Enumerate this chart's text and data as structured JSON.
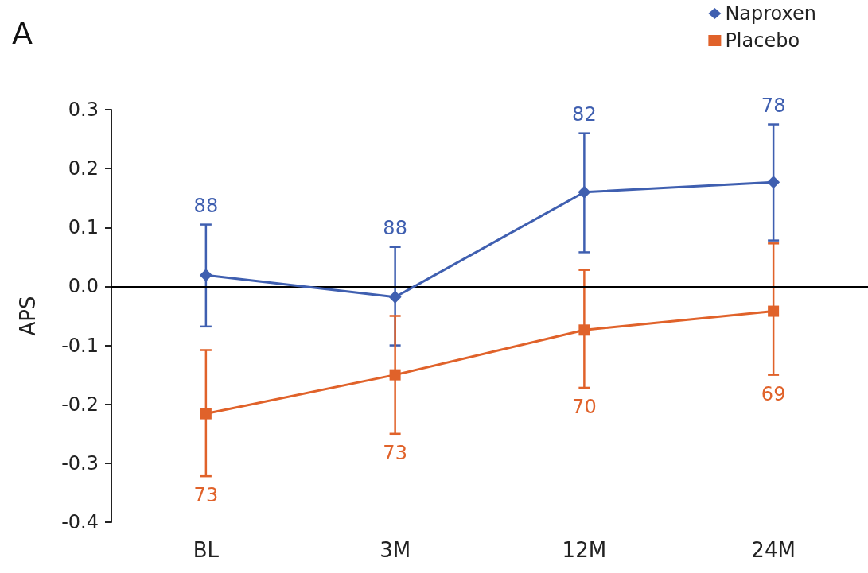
{
  "chart_data": {
    "type": "line",
    "title": "A",
    "ylabel": "APS",
    "categories": [
      "BL",
      "3M",
      "12M",
      "24M"
    ],
    "series": [
      {
        "name": "Naproxen",
        "color": "#3f5fb0",
        "marker": "diamond",
        "values": [
          0.019,
          -0.018,
          0.16,
          0.177
        ],
        "errors": [
          [
            -0.068,
            0.105
          ],
          [
            -0.1,
            0.067
          ],
          [
            0.058,
            0.26
          ],
          [
            0.078,
            0.275
          ]
        ]
      },
      {
        "name": "Placebo",
        "color": "#e0622a",
        "marker": "square",
        "values": [
          -0.216,
          -0.15,
          -0.074,
          -0.042
        ],
        "errors": [
          [
            -0.322,
            -0.108
          ],
          [
            -0.25,
            -0.05
          ],
          [
            -0.172,
            0.028
          ],
          [
            -0.15,
            0.073
          ]
        ]
      }
    ],
    "annotations": [
      {
        "text": "88",
        "x": "BL",
        "y": 0.105
      },
      {
        "text": "88",
        "x": "3M",
        "y": 0.067
      },
      {
        "text": "82",
        "x": "12M",
        "y": 0.26
      },
      {
        "text": "78",
        "x": "24M",
        "y": 0.275
      },
      {
        "text": "73",
        "x": "BL",
        "y": -0.322
      },
      {
        "text": "73",
        "x": "3M",
        "y": -0.25
      },
      {
        "text": "70",
        "x": "12M",
        "y": -0.172
      },
      {
        "text": "69",
        "x": "24M",
        "y": -0.15
      }
    ],
    "ylim": [
      -0.4,
      0.3
    ],
    "yticks": [
      {
        "value": -0.4,
        "label": "-0.4"
      },
      {
        "value": -0.3,
        "label": "-0.3"
      },
      {
        "value": -0.2,
        "label": "-0.2"
      },
      {
        "value": -0.1,
        "label": "-0.1"
      },
      {
        "value": 0,
        "label": "0.0"
      },
      0.1,
      0.2,
      0.3
    ],
    "ref_lines": [
      {
        "axis": "y",
        "value": 0,
        "color": "#000000"
      }
    ],
    "legend": "top right",
    "grid": false
  }
}
